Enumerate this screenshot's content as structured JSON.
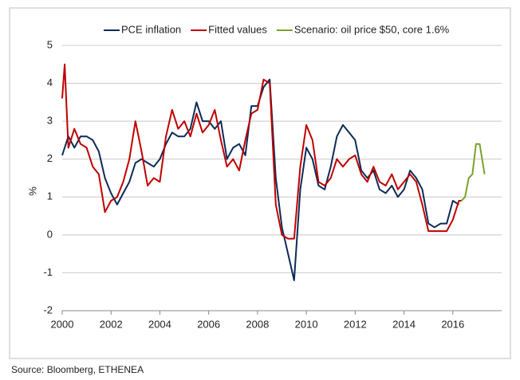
{
  "chart_data": {
    "type": "line",
    "y_label": "%",
    "source": "Source: Bloomberg, ETHENEA",
    "xlim": [
      2000,
      2018
    ],
    "xticks": [
      2000,
      2002,
      2004,
      2006,
      2008,
      2010,
      2012,
      2014,
      2016
    ],
    "ylim": [
      -2,
      5
    ],
    "yticks": [
      -2,
      -1,
      0,
      1,
      2,
      3,
      4,
      5
    ],
    "grid": true,
    "legend": "top",
    "series": [
      {
        "name": "PCE inflation",
        "color": "#0d2b57",
        "x": [
          2000.0,
          2000.25,
          2000.5,
          2000.75,
          2001.0,
          2001.25,
          2001.5,
          2001.75,
          2002.0,
          2002.25,
          2002.5,
          2002.75,
          2003.0,
          2003.25,
          2003.5,
          2003.75,
          2004.0,
          2004.25,
          2004.5,
          2004.75,
          2005.0,
          2005.25,
          2005.5,
          2005.75,
          2006.0,
          2006.25,
          2006.5,
          2006.75,
          2007.0,
          2007.25,
          2007.5,
          2007.75,
          2008.0,
          2008.25,
          2008.5,
          2008.75,
          2009.0,
          2009.25,
          2009.5,
          2009.75,
          2010.0,
          2010.25,
          2010.5,
          2010.75,
          2011.0,
          2011.25,
          2011.5,
          2011.75,
          2012.0,
          2012.25,
          2012.5,
          2012.75,
          2013.0,
          2013.25,
          2013.5,
          2013.75,
          2014.0,
          2014.25,
          2014.5,
          2014.75,
          2015.0,
          2015.25,
          2015.5,
          2015.75,
          2016.0,
          2016.25
        ],
        "values": [
          2.1,
          2.6,
          2.3,
          2.6,
          2.6,
          2.5,
          2.2,
          1.5,
          1.1,
          0.8,
          1.1,
          1.4,
          1.9,
          2.0,
          1.9,
          1.8,
          2.0,
          2.4,
          2.7,
          2.6,
          2.6,
          2.8,
          3.5,
          3.0,
          3.0,
          2.8,
          3.0,
          2.0,
          2.3,
          2.4,
          2.1,
          3.4,
          3.4,
          3.9,
          4.1,
          1.5,
          0.2,
          -0.5,
          -1.2,
          1.2,
          2.3,
          2.0,
          1.3,
          1.2,
          1.8,
          2.6,
          2.9,
          2.7,
          2.5,
          1.7,
          1.5,
          1.7,
          1.2,
          1.1,
          1.3,
          1.0,
          1.2,
          1.7,
          1.5,
          1.2,
          0.3,
          0.2,
          0.3,
          0.3,
          0.9,
          0.8
        ]
      },
      {
        "name": "Fitted values",
        "color": "#c00000",
        "x": [
          2000.0,
          2000.1,
          2000.25,
          2000.5,
          2000.75,
          2001.0,
          2001.25,
          2001.5,
          2001.75,
          2002.0,
          2002.25,
          2002.5,
          2002.75,
          2003.0,
          2003.25,
          2003.5,
          2003.75,
          2004.0,
          2004.25,
          2004.5,
          2004.75,
          2005.0,
          2005.25,
          2005.5,
          2005.75,
          2006.0,
          2006.25,
          2006.5,
          2006.75,
          2007.0,
          2007.25,
          2007.5,
          2007.75,
          2008.0,
          2008.25,
          2008.5,
          2008.75,
          2009.0,
          2009.25,
          2009.5,
          2009.75,
          2010.0,
          2010.25,
          2010.5,
          2010.75,
          2011.0,
          2011.25,
          2011.5,
          2011.75,
          2012.0,
          2012.25,
          2012.5,
          2012.75,
          2013.0,
          2013.25,
          2013.5,
          2013.75,
          2014.0,
          2014.25,
          2014.5,
          2014.75,
          2015.0,
          2015.25,
          2015.5,
          2015.75,
          2016.0,
          2016.25,
          2016.35
        ],
        "values": [
          3.6,
          4.5,
          2.3,
          2.8,
          2.4,
          2.3,
          1.8,
          1.6,
          0.6,
          0.9,
          1.0,
          1.4,
          2.0,
          3.0,
          2.2,
          1.3,
          1.5,
          1.4,
          2.6,
          3.3,
          2.8,
          3.0,
          2.6,
          3.2,
          2.7,
          2.9,
          3.3,
          2.5,
          1.8,
          2.0,
          1.7,
          2.5,
          3.2,
          3.3,
          4.1,
          4.0,
          0.8,
          0.0,
          -0.1,
          -0.1,
          1.8,
          2.9,
          2.5,
          1.4,
          1.3,
          1.5,
          2.0,
          1.8,
          2.0,
          2.1,
          1.6,
          1.4,
          1.8,
          1.4,
          1.3,
          1.6,
          1.2,
          1.4,
          1.6,
          1.4,
          0.8,
          0.1,
          0.1,
          0.1,
          0.1,
          0.4,
          0.9,
          0.9
        ]
      },
      {
        "name": "Scenario: oil price $50, core 1.6%",
        "color": "#7aa22a",
        "x": [
          2016.35,
          2016.5,
          2016.65,
          2016.8,
          2016.95,
          2017.1,
          2017.3
        ],
        "values": [
          0.9,
          1.0,
          1.5,
          1.6,
          2.4,
          2.4,
          1.6
        ]
      }
    ]
  }
}
